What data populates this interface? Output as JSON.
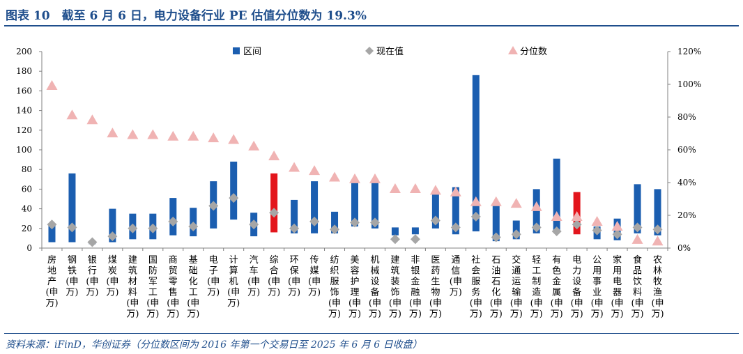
{
  "page": {
    "title": "图表 10　截至 6 月 6 日，电力设备行业 PE 估值分位数为 19.3%",
    "source": "资料来源：iFinD，华创证券（分位数区间为 2016 年第一个交易日至 2025 年 6 月 6 日收盘）"
  },
  "colors": {
    "title": "#1f4e8c",
    "range_bar": "#1b5eb0",
    "range_bar_highlight": "#e3151c",
    "current": "#a6a6a6",
    "percentile": "#f0b3b3",
    "axis": "#808080"
  },
  "chart_data": {
    "type": "bar",
    "categories": [
      "房地产(申万)",
      "钢铁(申万)",
      "银行(申万)",
      "煤炭(申万)",
      "建筑材料(申万)",
      "国防军工(申万)",
      "商贸零售(申万)",
      "基础化工(申万)",
      "电子(申万)",
      "计算机(申万)",
      "汽车(申万)",
      "综合(申万)",
      "环保(申万)",
      "传媒(申万)",
      "纺织服饰(申万)",
      "美容护理(申万)",
      "机械设备(申万)",
      "建筑装饰(申万)",
      "非银金融(申万)",
      "医药生物(申万)",
      "通信(申万)",
      "社会服务(申万)",
      "石油石化(申万)",
      "交通运输(申万)",
      "轻工制造(申万)",
      "有色金属(申万)",
      "电力设备(申万)",
      "公用事业(申万)",
      "家用电器(申万)",
      "食品饮料(申万)",
      "农林牧渔(申万)"
    ],
    "category_labels": [
      [
        "房",
        "地",
        "产",
        "(申",
        "万)"
      ],
      [
        "钢",
        "铁",
        "(申",
        "万)"
      ],
      [
        "银",
        "行",
        "(申",
        "万)"
      ],
      [
        "煤",
        "炭",
        "(申",
        "万)"
      ],
      [
        "建",
        "筑",
        "材",
        "料",
        "(申",
        "万)"
      ],
      [
        "国",
        "防",
        "军",
        "工",
        "(申",
        "万)"
      ],
      [
        "商",
        "贸",
        "零",
        "售",
        "(申",
        "万)"
      ],
      [
        "基",
        "础",
        "化",
        "工",
        "(申",
        "万)"
      ],
      [
        "电",
        "子",
        "(申",
        "万)"
      ],
      [
        "计",
        "算",
        "机",
        "(申",
        "万)"
      ],
      [
        "汽",
        "车",
        "(申",
        "万)"
      ],
      [
        "综",
        "合",
        "(申",
        "万)"
      ],
      [
        "环",
        "保",
        "(申",
        "万)"
      ],
      [
        "传",
        "媒",
        "(申",
        "万)"
      ],
      [
        "纺",
        "织",
        "服",
        "饰",
        "(申",
        "万)"
      ],
      [
        "美",
        "容",
        "护",
        "理",
        "(申",
        "万)"
      ],
      [
        "机",
        "械",
        "设",
        "备",
        "(申",
        "万)"
      ],
      [
        "建",
        "筑",
        "装",
        "饰",
        "(申",
        "万)"
      ],
      [
        "非",
        "银",
        "金",
        "融",
        "(申",
        "万)"
      ],
      [
        "医",
        "药",
        "生",
        "物",
        "(申",
        "万)"
      ],
      [
        "通",
        "信",
        "(申",
        "万)"
      ],
      [
        "社",
        "会",
        "服",
        "务",
        "(申",
        "万)"
      ],
      [
        "石",
        "油",
        "石",
        "化",
        "(申",
        "万)"
      ],
      [
        "交",
        "通",
        "运",
        "输",
        "(申",
        "万)"
      ],
      [
        "轻",
        "工",
        "制",
        "造",
        "(申",
        "万)"
      ],
      [
        "有",
        "色",
        "金",
        "属",
        "(申",
        "万)"
      ],
      [
        "电",
        "力",
        "设",
        "备",
        "(申",
        "万)"
      ],
      [
        "公",
        "用",
        "事",
        "业",
        "(申",
        "万)"
      ],
      [
        "家",
        "用",
        "电",
        "器",
        "(申",
        "万)"
      ],
      [
        "食",
        "品",
        "饮",
        "料",
        "(申",
        "万)"
      ],
      [
        "农",
        "林",
        "牧",
        "渔",
        "(申",
        "万)"
      ]
    ],
    "series": [
      {
        "name": "区间",
        "kind": "floating-bar",
        "axis": "left",
        "low": [
          6,
          6,
          4,
          6,
          9,
          9,
          13,
          12,
          20,
          29,
          12,
          16,
          15,
          15,
          15,
          22,
          20,
          13,
          14,
          20,
          14,
          17,
          7,
          9,
          15,
          16,
          14,
          9,
          8,
          15,
          13
        ],
        "high": [
          24,
          76,
          6,
          40,
          35,
          35,
          51,
          41,
          68,
          88,
          36,
          76,
          49,
          68,
          37,
          67,
          67,
          21,
          21,
          56,
          62,
          176,
          45,
          28,
          60,
          91,
          57,
          22,
          30,
          65,
          60
        ],
        "highlight_index": [
          11,
          26
        ]
      },
      {
        "name": "现在值",
        "kind": "diamond",
        "axis": "left",
        "values": [
          24,
          21,
          6,
          12,
          20,
          20,
          27,
          22,
          43,
          51,
          24,
          36,
          20,
          27,
          19,
          26,
          26,
          9,
          9,
          28,
          21,
          32,
          11,
          14,
          21,
          17,
          24,
          18,
          14,
          21,
          19
        ]
      },
      {
        "name": "分位数",
        "kind": "triangle",
        "axis": "right",
        "values": [
          99,
          81,
          78,
          70,
          69,
          69,
          68,
          68,
          67,
          66,
          62,
          56,
          49,
          47,
          43,
          42,
          42,
          36,
          36,
          35,
          34,
          28,
          28,
          27,
          25,
          19,
          19,
          16,
          13,
          5,
          4
        ]
      }
    ],
    "y_left": {
      "min": 0,
      "max": 200,
      "ticks": [
        0,
        20,
        40,
        60,
        80,
        100,
        120,
        140,
        160,
        180,
        200
      ]
    },
    "y_right": {
      "min": 0,
      "max": 120,
      "ticks": [
        0,
        20,
        40,
        60,
        80,
        100,
        120
      ],
      "tick_labels": [
        "0%",
        "20%",
        "40%",
        "60%",
        "80%",
        "100%",
        "120%"
      ]
    },
    "legend": {
      "placement": "top-center"
    }
  }
}
